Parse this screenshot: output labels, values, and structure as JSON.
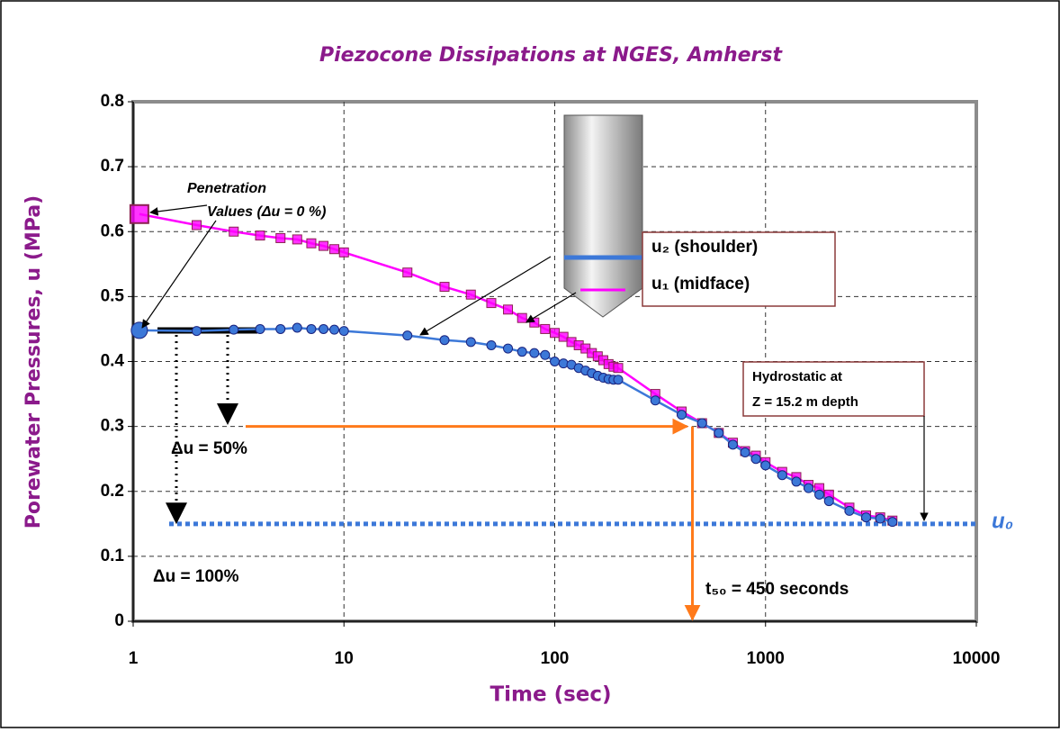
{
  "chart_data": {
    "type": "line",
    "title": "Piezocone Dissipations at NGES, Amherst",
    "x_label": "Time (sec)",
    "y_label": "Porewater Pressures, u  (MPa)",
    "x_scale": "log",
    "grid": true,
    "xlim": [
      1,
      10000
    ],
    "xticks": [
      1,
      10,
      100,
      1000,
      10000
    ],
    "ylim": [
      0,
      0.8
    ],
    "yticks": [
      0,
      0.1,
      0.2,
      0.3,
      0.4,
      0.5,
      0.6,
      0.7,
      0.8
    ],
    "x": [
      1.07,
      2,
      3,
      4,
      5,
      6,
      7,
      8,
      9,
      10,
      20,
      30,
      40,
      50,
      60,
      70,
      80,
      90,
      100,
      110,
      120,
      130,
      140,
      150,
      160,
      170,
      180,
      190,
      200,
      300,
      400,
      500,
      600,
      700,
      800,
      900,
      1000,
      1200,
      1400,
      1600,
      1800,
      2000,
      2500,
      3000,
      3500,
      4000
    ],
    "series": [
      {
        "name": "u₂ (shoulder)",
        "color": "#3c78d8",
        "marker": "circle",
        "values": [
          0.448,
          0.447,
          0.449,
          0.45,
          0.45,
          0.452,
          0.45,
          0.45,
          0.449,
          0.447,
          0.44,
          0.433,
          0.43,
          0.425,
          0.42,
          0.415,
          0.413,
          0.41,
          0.4,
          0.397,
          0.395,
          0.39,
          0.386,
          0.382,
          0.378,
          0.375,
          0.373,
          0.372,
          0.372,
          0.34,
          0.318,
          0.305,
          0.29,
          0.272,
          0.26,
          0.25,
          0.24,
          0.225,
          0.215,
          0.205,
          0.195,
          0.185,
          0.17,
          0.16,
          0.158,
          0.153
        ]
      },
      {
        "name": "u₁ (midface)",
        "color": "#ff00ff",
        "marker": "square",
        "values": [
          0.627,
          0.61,
          0.6,
          0.594,
          0.59,
          0.588,
          0.582,
          0.578,
          0.573,
          0.568,
          0.537,
          0.515,
          0.503,
          0.49,
          0.48,
          0.467,
          0.46,
          0.45,
          0.444,
          0.438,
          0.43,
          0.425,
          0.42,
          0.413,
          0.408,
          0.402,
          0.396,
          0.392,
          0.39,
          0.35,
          0.323,
          0.305,
          0.29,
          0.275,
          0.262,
          0.255,
          0.245,
          0.23,
          0.222,
          0.21,
          0.205,
          0.195,
          0.175,
          0.163,
          0.16,
          0.155
        ]
      }
    ],
    "hydrostatic_line": {
      "label": "u₀",
      "value": 0.15
    },
    "half_line": {
      "label": "Δu = 50%",
      "value": 0.3
    },
    "full_label": "Δu = 100%",
    "t50_line": {
      "label": "t₅₀ = 450 seconds",
      "value": 450
    },
    "penetration_label": [
      "Penetration",
      "Values  (Δu = 0 %)"
    ],
    "hydrostatic_label": [
      "Hydrostatic at",
      "Z = 15.2 m depth"
    ]
  }
}
